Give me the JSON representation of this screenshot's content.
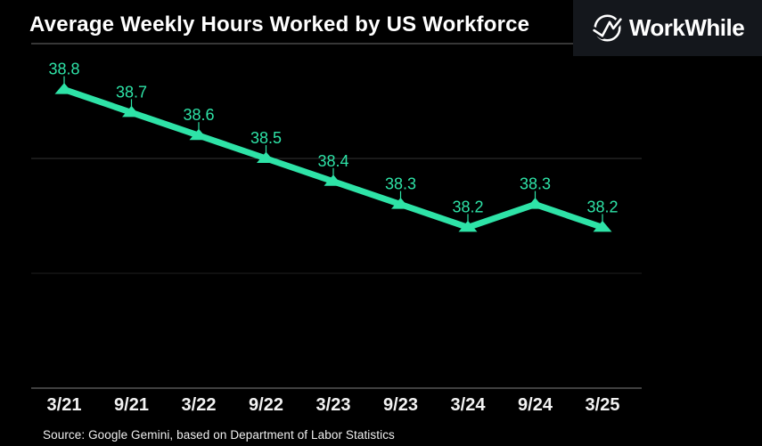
{
  "header": {
    "title": "Average Weekly Hours Worked by US Workforce"
  },
  "logo": {
    "brand": "WorkWhile",
    "icon": "workwhile-circle-w-icon"
  },
  "chart_data": {
    "type": "line",
    "title": "Average Weekly Hours Worked by US Workforce",
    "categories": [
      "3/21",
      "9/21",
      "3/22",
      "9/22",
      "3/23",
      "9/23",
      "3/24",
      "9/24",
      "3/25"
    ],
    "series": [
      {
        "name": "Average weekly hours",
        "values": [
          38.8,
          38.7,
          38.6,
          38.5,
          38.4,
          38.3,
          38.2,
          38.3,
          38.2
        ]
      }
    ],
    "data_labels": [
      "38.8",
      "38.7",
      "38.6",
      "38.5",
      "38.4",
      "38.3",
      "38.2",
      "38.3",
      "38.2"
    ],
    "xlabel": "",
    "ylabel": "",
    "ylim": [
      37.5,
      39.0
    ],
    "ytick_interval": 0.5,
    "gridline_values": [
      39.0,
      38.5,
      38.0,
      37.5
    ],
    "grid": true,
    "legend": "none",
    "marker": "triangle-up"
  },
  "footer": {
    "source": "Source: Google Gemini, based on Department of Labor Statistics"
  },
  "colors": {
    "background": "#000000",
    "accent": "#2ee3a7",
    "title_text": "#ffffff",
    "tick_label_text": "#f2f2f2",
    "gridline_top": "#6e6e6e",
    "gridline_mid": "#333333",
    "gridline_faint": "#1f1f1f",
    "axis_line": "#555555",
    "logo_background": "#14171c",
    "logo_text": "#ffffff"
  }
}
